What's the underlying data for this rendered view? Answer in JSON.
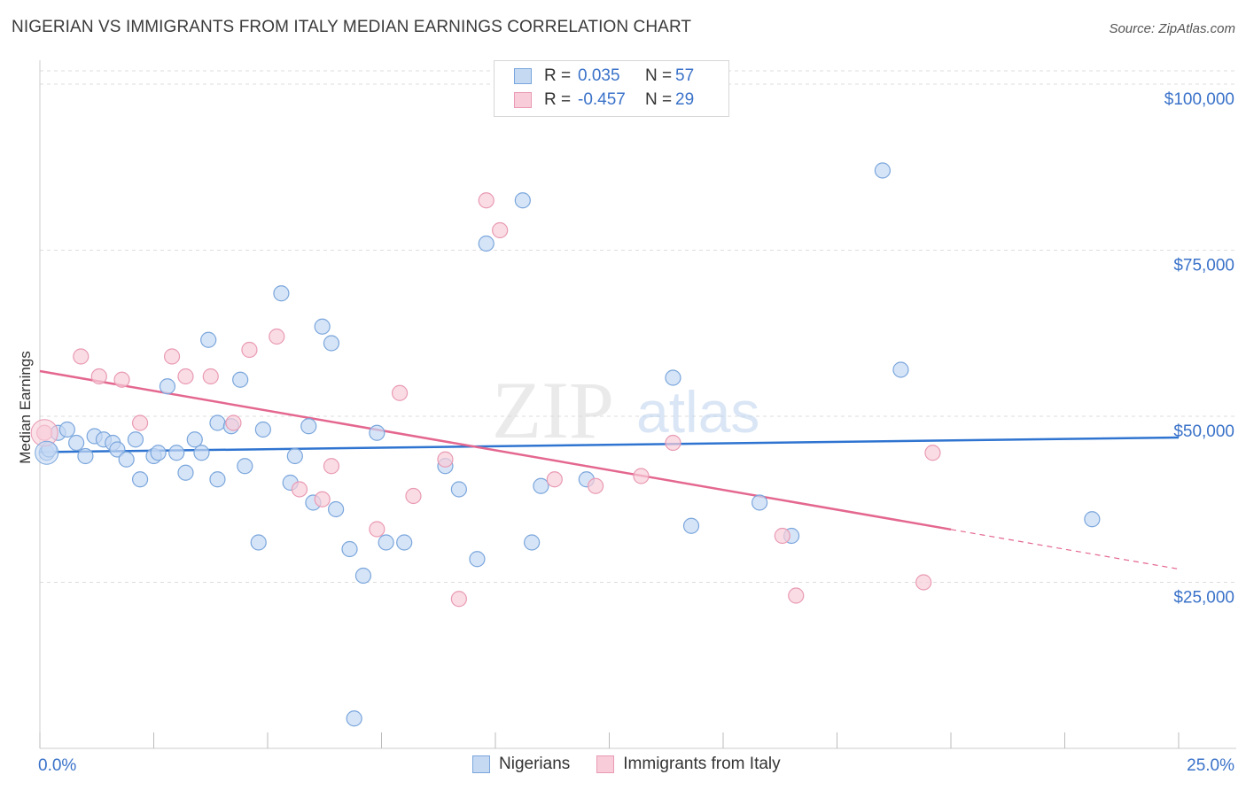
{
  "title": "NIGERIAN VS IMMIGRANTS FROM ITALY MEDIAN EARNINGS CORRELATION CHART",
  "source": "Source: ZipAtlas.com",
  "watermark": {
    "zip": "ZIP",
    "atlas": "atlas"
  },
  "legend": {
    "series1": {
      "r_label": "R =",
      "r_value": "0.035",
      "n_label": "N =",
      "n_value": "57"
    },
    "series2": {
      "r_label": "R =",
      "r_value": "-0.457",
      "n_label": "N =",
      "n_value": "29"
    }
  },
  "bottom_legend": {
    "series1": "Nigerians",
    "series2": "Immigrants from Italy"
  },
  "colors": {
    "blue_fill": "#c5d9f3",
    "blue_stroke": "#7aa6dc",
    "blue_line": "#2f74d0",
    "pink_fill": "#f8cdd9",
    "pink_stroke": "#e99ab3",
    "pink_line": "#e4678f",
    "axis_text": "#3a72c9",
    "grid": "#dddddd"
  },
  "chart_data": {
    "type": "scatter",
    "title": "NIGERIAN VS IMMIGRANTS FROM ITALY MEDIAN EARNINGS CORRELATION CHART",
    "xlabel": "",
    "ylabel": "Median Earnings",
    "xlim": [
      0,
      25
    ],
    "ylim": [
      0,
      102000
    ],
    "x_tick_labels": [
      "0.0%",
      "25.0%"
    ],
    "y_ticks": [
      25000,
      50000,
      75000,
      100000
    ],
    "y_tick_labels": [
      "$25,000",
      "$50,000",
      "$75,000",
      "$100,000"
    ],
    "grid": true,
    "series": [
      {
        "name": "Nigerians",
        "r": 0.035,
        "n": 57,
        "trend": {
          "x0": 0,
          "y0": 44600,
          "x1": 25,
          "y1": 46800,
          "dash_from_x": null
        },
        "points": [
          [
            0.15,
            44500
          ],
          [
            0.2,
            45000
          ],
          [
            0.4,
            47500
          ],
          [
            0.6,
            48000
          ],
          [
            0.8,
            46000
          ],
          [
            1.0,
            44000
          ],
          [
            1.2,
            47000
          ],
          [
            1.4,
            46500
          ],
          [
            1.6,
            46000
          ],
          [
            1.7,
            45000
          ],
          [
            1.9,
            43500
          ],
          [
            2.1,
            46500
          ],
          [
            2.2,
            40500
          ],
          [
            2.5,
            44000
          ],
          [
            2.6,
            44500
          ],
          [
            2.8,
            54500
          ],
          [
            3.0,
            44500
          ],
          [
            3.2,
            41500
          ],
          [
            3.4,
            46500
          ],
          [
            3.55,
            44500
          ],
          [
            3.7,
            61500
          ],
          [
            3.9,
            40500
          ],
          [
            3.9,
            49000
          ],
          [
            4.2,
            48500
          ],
          [
            4.4,
            55500
          ],
          [
            4.5,
            42500
          ],
          [
            4.8,
            31000
          ],
          [
            4.9,
            48000
          ],
          [
            5.3,
            68500
          ],
          [
            5.5,
            40000
          ],
          [
            5.6,
            44000
          ],
          [
            5.9,
            48500
          ],
          [
            6.0,
            37000
          ],
          [
            6.2,
            63500
          ],
          [
            6.4,
            61000
          ],
          [
            6.5,
            36000
          ],
          [
            6.8,
            30000
          ],
          [
            6.9,
            4500
          ],
          [
            7.1,
            26000
          ],
          [
            7.4,
            47500
          ],
          [
            7.6,
            31000
          ],
          [
            8.0,
            31000
          ],
          [
            8.9,
            42500
          ],
          [
            9.2,
            39000
          ],
          [
            9.6,
            28500
          ],
          [
            9.8,
            76000
          ],
          [
            10.6,
            82500
          ],
          [
            10.8,
            31000
          ],
          [
            11.0,
            39500
          ],
          [
            12.0,
            40500
          ],
          [
            13.9,
            55800
          ],
          [
            14.3,
            33500
          ],
          [
            15.8,
            37000
          ],
          [
            16.5,
            32000
          ],
          [
            18.5,
            87000
          ],
          [
            18.9,
            57000
          ],
          [
            23.1,
            34500
          ]
        ]
      },
      {
        "name": "Immigrants from Italy",
        "r": -0.457,
        "n": 29,
        "trend": {
          "x0": 0,
          "y0": 56800,
          "x1": 25,
          "y1": 27000,
          "dash_from_x": 20
        },
        "points": [
          [
            0.1,
            47500
          ],
          [
            0.9,
            59000
          ],
          [
            1.3,
            56000
          ],
          [
            1.8,
            55500
          ],
          [
            2.2,
            49000
          ],
          [
            2.9,
            59000
          ],
          [
            3.2,
            56000
          ],
          [
            3.75,
            56000
          ],
          [
            4.25,
            49000
          ],
          [
            4.6,
            60000
          ],
          [
            5.2,
            62000
          ],
          [
            5.7,
            39000
          ],
          [
            6.2,
            37500
          ],
          [
            6.4,
            42500
          ],
          [
            7.4,
            33000
          ],
          [
            7.9,
            53500
          ],
          [
            8.2,
            38000
          ],
          [
            8.9,
            43500
          ],
          [
            9.2,
            22500
          ],
          [
            9.8,
            82500
          ],
          [
            10.1,
            78000
          ],
          [
            11.3,
            40500
          ],
          [
            12.2,
            39500
          ],
          [
            13.2,
            41000
          ],
          [
            13.9,
            46000
          ],
          [
            16.3,
            32000
          ],
          [
            16.6,
            23000
          ],
          [
            19.4,
            25000
          ],
          [
            19.6,
            44500
          ]
        ]
      }
    ]
  }
}
